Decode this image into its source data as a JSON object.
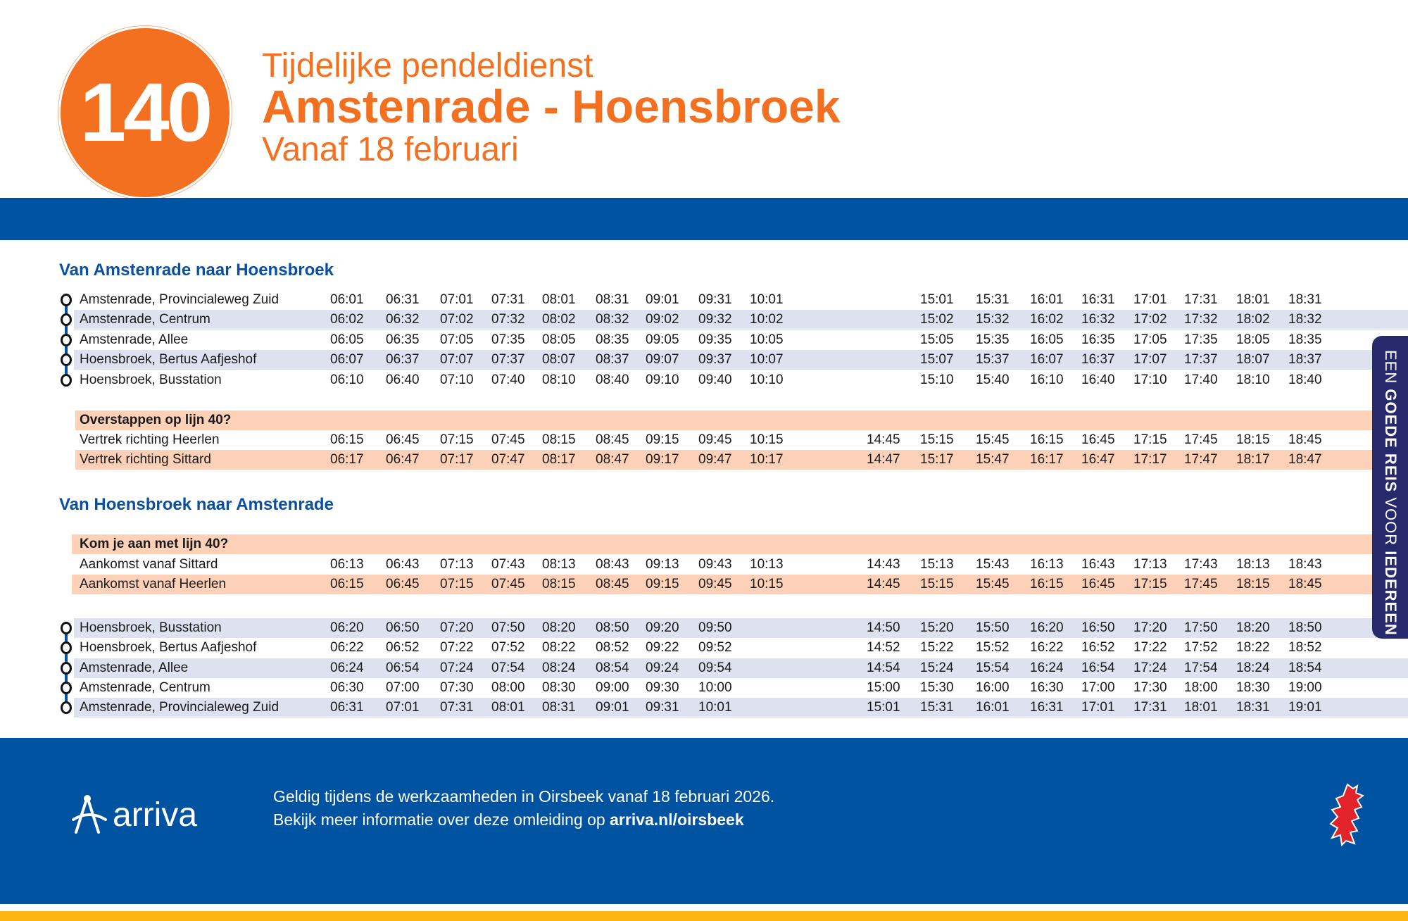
{
  "header": {
    "line_number": "140",
    "subtitle": "Tijdelijke pendeldienst",
    "title": "Amstenrade - Hoensbroek",
    "date": "Vanaf 18 februari"
  },
  "side_tab": {
    "pre": "EEN ",
    "bold1": "GOEDE REIS",
    "mid": " VOOR ",
    "bold2": "IEDEREEN"
  },
  "colors": {
    "orange": "#F37021",
    "blue": "#0053A0",
    "row_alt": "#DEE2F0",
    "transfer": "#FDD1B8",
    "tab": "#27296D",
    "stripe": "#FDB515"
  },
  "section1": {
    "title": "Van Amstenrade naar Hoensbroek",
    "stops": [
      {
        "name": "Amstenrade, Provincialeweg Zuid",
        "times": [
          "06:01",
          "06:31",
          "07:01",
          "07:31",
          "08:01",
          "08:31",
          "09:01",
          "09:31",
          "10:01",
          null,
          "15:01",
          "15:31",
          "16:01",
          "16:31",
          "17:01",
          "17:31",
          "18:01",
          "18:31"
        ]
      },
      {
        "name": "Amstenrade, Centrum",
        "times": [
          "06:02",
          "06:32",
          "07:02",
          "07:32",
          "08:02",
          "08:32",
          "09:02",
          "09:32",
          "10:02",
          null,
          "15:02",
          "15:32",
          "16:02",
          "16:32",
          "17:02",
          "17:32",
          "18:02",
          "18:32"
        ]
      },
      {
        "name": "Amstenrade, Allee",
        "times": [
          "06:05",
          "06:35",
          "07:05",
          "07:35",
          "08:05",
          "08:35",
          "09:05",
          "09:35",
          "10:05",
          null,
          "15:05",
          "15:35",
          "16:05",
          "16:35",
          "17:05",
          "17:35",
          "18:05",
          "18:35"
        ]
      },
      {
        "name": "Hoensbroek, Bertus Aafjeshof",
        "times": [
          "06:07",
          "06:37",
          "07:07",
          "07:37",
          "08:07",
          "08:37",
          "09:07",
          "09:37",
          "10:07",
          null,
          "15:07",
          "15:37",
          "16:07",
          "16:37",
          "17:07",
          "17:37",
          "18:07",
          "18:37"
        ]
      },
      {
        "name": "Hoensbroek, Busstation",
        "times": [
          "06:10",
          "06:40",
          "07:10",
          "07:40",
          "08:10",
          "08:40",
          "09:10",
          "09:40",
          "10:10",
          null,
          "15:10",
          "15:40",
          "16:10",
          "16:40",
          "17:10",
          "17:40",
          "18:10",
          "18:40"
        ]
      }
    ],
    "transfer": {
      "title": "Overstappen op lijn 40?",
      "rows": [
        {
          "name": "Vertrek richting Heerlen",
          "times": [
            "06:15",
            "06:45",
            "07:15",
            "07:45",
            "08:15",
            "08:45",
            "09:15",
            "09:45",
            "10:15",
            "14:45",
            "15:15",
            "15:45",
            "16:15",
            "16:45",
            "17:15",
            "17:45",
            "18:15",
            "18:45"
          ]
        },
        {
          "name": "Vertrek richting Sittard",
          "times": [
            "06:17",
            "06:47",
            "07:17",
            "07:47",
            "08:17",
            "08:47",
            "09:17",
            "09:47",
            "10:17",
            "14:47",
            "15:17",
            "15:47",
            "16:17",
            "16:47",
            "17:17",
            "17:47",
            "18:17",
            "18:47"
          ]
        }
      ]
    }
  },
  "section2": {
    "title": "Van Hoensbroek naar Amstenrade",
    "transfer": {
      "title": "Kom je aan met lijn 40?",
      "rows": [
        {
          "name": "Aankomst vanaf Sittard",
          "times": [
            "06:13",
            "06:43",
            "07:13",
            "07:43",
            "08:13",
            "08:43",
            "09:13",
            "09:43",
            "10:13",
            "14:43",
            "15:13",
            "15:43",
            "16:13",
            "16:43",
            "17:13",
            "17:43",
            "18:13",
            "18:43"
          ]
        },
        {
          "name": "Aankomst vanaf Heerlen",
          "times": [
            "06:15",
            "06:45",
            "07:15",
            "07:45",
            "08:15",
            "08:45",
            "09:15",
            "09:45",
            "10:15",
            "14:45",
            "15:15",
            "15:45",
            "16:15",
            "16:45",
            "17:15",
            "17:45",
            "18:15",
            "18:45"
          ]
        }
      ]
    },
    "stops": [
      {
        "name": "Hoensbroek, Busstation",
        "times": [
          "06:20",
          "06:50",
          "07:20",
          "07:50",
          "08:20",
          "08:50",
          "09:20",
          "09:50",
          null,
          "14:50",
          "15:20",
          "15:50",
          "16:20",
          "16:50",
          "17:20",
          "17:50",
          "18:20",
          "18:50"
        ]
      },
      {
        "name": "Hoensbroek, Bertus Aafjeshof",
        "times": [
          "06:22",
          "06:52",
          "07:22",
          "07:52",
          "08:22",
          "08:52",
          "09:22",
          "09:52",
          null,
          "14:52",
          "15:22",
          "15:52",
          "16:22",
          "16:52",
          "17:22",
          "17:52",
          "18:22",
          "18:52"
        ]
      },
      {
        "name": "Amstenrade, Allee",
        "times": [
          "06:24",
          "06:54",
          "07:24",
          "07:54",
          "08:24",
          "08:54",
          "09:24",
          "09:54",
          null,
          "14:54",
          "15:24",
          "15:54",
          "16:24",
          "16:54",
          "17:24",
          "17:54",
          "18:24",
          "18:54"
        ]
      },
      {
        "name": "Amstenrade, Centrum",
        "times": [
          "06:30",
          "07:00",
          "07:30",
          "08:00",
          "08:30",
          "09:00",
          "09:30",
          "10:00",
          null,
          "15:00",
          "15:30",
          "16:00",
          "16:30",
          "17:00",
          "17:30",
          "18:00",
          "18:30",
          "19:00"
        ]
      },
      {
        "name": "Amstenrade, Provincialeweg Zuid",
        "times": [
          "06:31",
          "07:01",
          "07:31",
          "08:01",
          "08:31",
          "09:01",
          "09:31",
          "10:01",
          null,
          "15:01",
          "15:31",
          "16:01",
          "16:31",
          "17:01",
          "17:31",
          "18:01",
          "18:31",
          "19:01"
        ]
      }
    ]
  },
  "footer": {
    "logo": "arriva",
    "line1": "Geldig tijdens de werkzaamheden in Oirsbeek vanaf 18 februari 2026.",
    "line2": "Bekijk meer informatie over deze omleiding op ",
    "link": "arriva.nl/oirsbeek",
    "lion_icon": "limburg-lion-icon"
  }
}
